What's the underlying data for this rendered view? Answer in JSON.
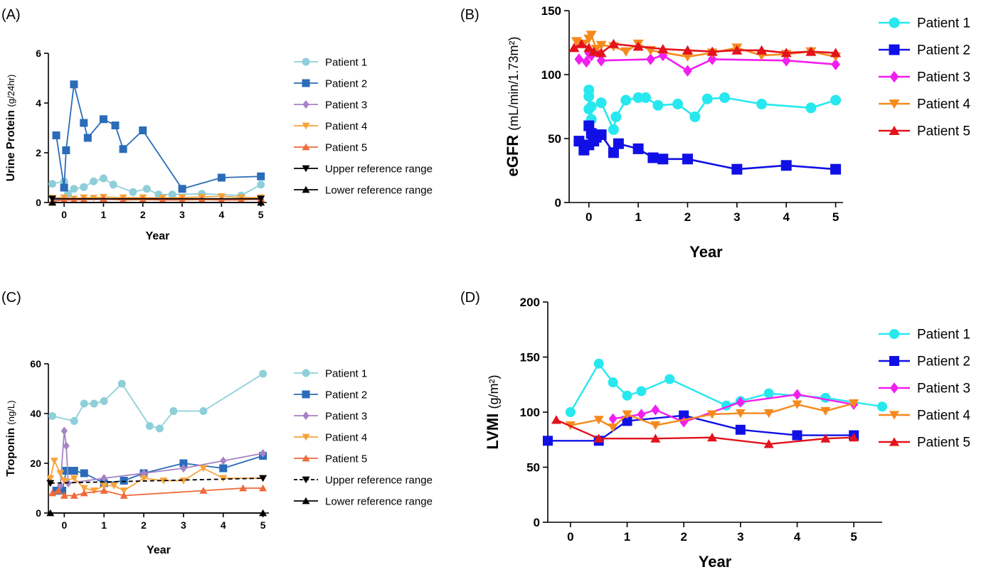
{
  "figure": {
    "panels": [
      "(A)",
      "(B)",
      "(C)",
      "(D)"
    ]
  },
  "chart_data": [
    {
      "panel": "(A)",
      "type": "line",
      "xlabel": "Year",
      "ylabel": "Urine Protein",
      "yunit": "(g/24hr)",
      "ylim": [
        0,
        6
      ],
      "yticks": [
        0,
        2,
        4,
        6
      ],
      "xlim": [
        -0.4,
        5.15
      ],
      "xticks": [
        0,
        1,
        2,
        3,
        4,
        5
      ],
      "legend": "right",
      "series": [
        {
          "name": "Patient 1",
          "marker": "circle",
          "color": "#8ecfd9",
          "x": [
            -0.3,
            0,
            0.1,
            0.25,
            0.5,
            0.75,
            1,
            1.25,
            1.75,
            2.1,
            2.4,
            2.75,
            3.5,
            4.5,
            5
          ],
          "y": [
            0.75,
            0.85,
            0.35,
            0.55,
            0.62,
            0.85,
            0.97,
            0.72,
            0.42,
            0.55,
            0.32,
            0.32,
            0.35,
            0.28,
            0.72
          ]
        },
        {
          "name": "Patient 2",
          "marker": "square",
          "color": "#2a6cb8",
          "x": [
            -0.2,
            0,
            0.05,
            0.25,
            0.5,
            0.6,
            1,
            1.3,
            1.5,
            2,
            3,
            4,
            5
          ],
          "y": [
            2.7,
            0.6,
            2.1,
            4.75,
            3.2,
            2.6,
            3.35,
            3.1,
            2.15,
            2.9,
            0.55,
            1.0,
            1.05
          ]
        },
        {
          "name": "Patient 3",
          "marker": "diamond",
          "color": "#a683c4",
          "x": [
            -0.25,
            0,
            0.5,
            1,
            1.5,
            2,
            2.5,
            3,
            3.5,
            4,
            5
          ],
          "y": [
            0.12,
            0.12,
            0.12,
            0.12,
            0.12,
            0.12,
            0.12,
            0.12,
            0.12,
            0.12,
            0.12
          ]
        },
        {
          "name": "Patient 4",
          "marker": "triangle-down",
          "color": "#f7a33a",
          "x": [
            -0.3,
            0,
            0.25,
            0.5,
            0.75,
            1,
            1.5,
            2,
            2.5,
            3,
            3.5,
            4,
            4.5,
            5
          ],
          "y": [
            0.18,
            0.2,
            0.15,
            0.2,
            0.18,
            0.22,
            0.2,
            0.2,
            0.18,
            0.2,
            0.22,
            0.25,
            0.2,
            0.2
          ]
        },
        {
          "name": "Patient 5",
          "marker": "triangle-up",
          "color": "#ef6a3a",
          "x": [
            -0.3,
            0,
            0.25,
            0.5,
            1,
            1.5,
            2,
            2.5,
            3,
            3.5,
            4,
            4.5,
            5
          ],
          "y": [
            0.05,
            0.1,
            0.1,
            0.12,
            0.15,
            0.1,
            0.12,
            0.1,
            0.1,
            0.12,
            0.1,
            0.1,
            0.15
          ]
        },
        {
          "name": "Upper reference range",
          "marker": "triangle-down",
          "color": "#000000",
          "dashed": false,
          "x": [
            -0.3,
            5
          ],
          "y": [
            0.15,
            0.15
          ]
        },
        {
          "name": "Lower reference range",
          "marker": "triangle-up",
          "color": "#000000",
          "dashed": false,
          "x": [
            -0.3,
            5
          ],
          "y": [
            0,
            0
          ]
        }
      ]
    },
    {
      "panel": "(B)",
      "type": "line",
      "xlabel": "Year",
      "ylabel": "eGFR",
      "yunit": "(mL/min/1.73m²)",
      "ylim": [
        0,
        150
      ],
      "yticks": [
        0,
        50,
        100,
        150
      ],
      "xlim": [
        -0.4,
        5.15
      ],
      "xticks": [
        0,
        1,
        2,
        3,
        4,
        5
      ],
      "legend": "right",
      "series": [
        {
          "name": "Patient 1",
          "marker": "circle",
          "color": "#27e8ef",
          "x": [
            0,
            0,
            0,
            0.05,
            0.05,
            0.25,
            0.5,
            0.55,
            0.75,
            1.0,
            1.15,
            1.4,
            1.8,
            2.15,
            2.4,
            2.75,
            3.5,
            4.5,
            5.0
          ],
          "y": [
            73,
            83,
            88,
            65,
            75,
            78,
            57,
            67,
            80,
            82,
            82,
            76,
            77,
            67,
            81,
            82,
            77,
            74,
            80
          ]
        },
        {
          "name": "Patient 2",
          "marker": "square",
          "color": "#1010e6",
          "x": [
            -0.2,
            -0.1,
            0,
            0,
            0.05,
            0.1,
            0.15,
            0.25,
            0.5,
            0.6,
            1.0,
            1.3,
            1.5,
            2.0,
            3.0,
            4.0,
            5.0
          ],
          "y": [
            48,
            41,
            45,
            60,
            54,
            48,
            51,
            53,
            39,
            46,
            42,
            35,
            34,
            34,
            26,
            29,
            26
          ]
        },
        {
          "name": "Patient 3",
          "marker": "diamond",
          "color": "#f21ef0",
          "x": [
            -0.2,
            -0.05,
            0,
            0.05,
            0.15,
            0.25,
            1.25,
            1.5,
            2.0,
            2.5,
            4.0,
            5.0
          ],
          "y": [
            112,
            110,
            117,
            115,
            118,
            111,
            112,
            115,
            103,
            112,
            111,
            108
          ]
        },
        {
          "name": "Patient 4",
          "marker": "triangle-down",
          "color": "#f58a1c",
          "x": [
            -0.25,
            -0.1,
            0,
            0.05,
            0.15,
            0.25,
            0.5,
            0.75,
            1.0,
            1.25,
            2.0,
            2.5,
            3.0,
            3.5,
            4.0,
            4.5,
            5.0
          ],
          "y": [
            126,
            124,
            128,
            131,
            120,
            123,
            122,
            118,
            124,
            119,
            114,
            117,
            121,
            115,
            116,
            118,
            114
          ]
        },
        {
          "name": "Patient 5",
          "marker": "triangle-up",
          "color": "#e3121b",
          "x": [
            -0.3,
            -0.15,
            0,
            0.1,
            0.25,
            0.5,
            1.0,
            1.5,
            2.0,
            2.5,
            3.0,
            3.5,
            4.0,
            4.5,
            5.0
          ],
          "y": [
            121,
            124,
            121,
            118,
            117,
            124,
            122,
            120,
            119,
            118,
            119,
            119,
            117,
            118,
            117
          ]
        }
      ]
    },
    {
      "panel": "(C)",
      "type": "line",
      "xlabel": "Year",
      "ylabel": "Troponin",
      "yunit": "(ng/L)",
      "ylim": [
        0,
        60
      ],
      "yticks": [
        0,
        20,
        40,
        60
      ],
      "xlim": [
        -0.4,
        5.15
      ],
      "xticks": [
        0,
        1,
        2,
        3,
        4,
        5
      ],
      "legend": "right",
      "series": [
        {
          "name": "Patient 1",
          "marker": "circle",
          "color": "#8ecfd9",
          "x": [
            -0.3,
            0.25,
            0.5,
            0.75,
            1.0,
            1.45,
            2.15,
            2.4,
            2.75,
            3.5,
            5.0
          ],
          "y": [
            39,
            37,
            44,
            44,
            45,
            52,
            35,
            34,
            41,
            41,
            56
          ]
        },
        {
          "name": "Patient 2",
          "marker": "square",
          "color": "#2a6cb8",
          "x": [
            -0.2,
            -0.05,
            0.05,
            0.15,
            0.25,
            0.5,
            1.0,
            1.5,
            2.0,
            3.0,
            4.0,
            5.0
          ],
          "y": [
            9,
            9,
            17,
            17,
            17,
            16,
            12,
            13,
            16,
            20,
            18,
            23
          ]
        },
        {
          "name": "Patient 3",
          "marker": "diamond",
          "color": "#a683c4",
          "x": [
            -0.1,
            0,
            0.05,
            0.1,
            1.0,
            2.0,
            3.0,
            4.0,
            5.0
          ],
          "y": [
            11,
            33,
            27,
            12,
            14,
            16,
            18,
            21,
            24
          ]
        },
        {
          "name": "Patient 4",
          "marker": "triangle-down",
          "color": "#f7a33a",
          "x": [
            -0.35,
            -0.25,
            -0.1,
            0,
            0.25,
            0.5,
            0.75,
            1.0,
            1.25,
            1.5,
            2.0,
            2.5,
            3.0,
            3.5,
            4.0,
            5.0
          ],
          "y": [
            14,
            21,
            16,
            13,
            14,
            10,
            9,
            11,
            11,
            9,
            14,
            13,
            13,
            18,
            14,
            14
          ]
        },
        {
          "name": "Patient 5",
          "marker": "triangle-up",
          "color": "#ef6a3a",
          "x": [
            -0.3,
            -0.15,
            0,
            0.25,
            0.5,
            1.0,
            1.5,
            3.5,
            4.5,
            5.0
          ],
          "y": [
            8,
            9,
            7,
            7,
            8,
            9,
            7,
            9,
            10,
            10
          ]
        },
        {
          "name": "Upper reference range",
          "marker": "triangle-down",
          "color": "#000000",
          "dashed": true,
          "x": [
            -0.35,
            5.0
          ],
          "y": [
            12,
            14
          ]
        },
        {
          "name": "Lower reference range",
          "marker": "triangle-up",
          "color": "#000000",
          "dashed": false,
          "x": [
            -0.35,
            5.0
          ],
          "y": [
            0,
            0
          ]
        }
      ]
    },
    {
      "panel": "(D)",
      "type": "line",
      "xlabel": "Year",
      "ylabel": "LVMI",
      "yunit": "(g/m²)",
      "ylim": [
        0,
        200
      ],
      "yticks": [
        0,
        50,
        100,
        150,
        200
      ],
      "xlim": [
        -0.4,
        5.5
      ],
      "xticks": [
        0,
        1,
        2,
        3,
        4,
        5
      ],
      "legend": "right",
      "series": [
        {
          "name": "Patient 1",
          "marker": "circle",
          "color": "#27e8ef",
          "x": [
            0,
            0.5,
            0.75,
            1.0,
            1.25,
            1.75,
            2.75,
            3.0,
            3.5,
            4.5,
            5.5
          ],
          "y": [
            100,
            144,
            127,
            115,
            119,
            130,
            106,
            110,
            117,
            113,
            105
          ]
        },
        {
          "name": "Patient 2",
          "marker": "square",
          "color": "#1010e6",
          "x": [
            -0.4,
            0.5,
            1.0,
            2.0,
            3.0,
            4.0,
            5.0
          ],
          "y": [
            74,
            74,
            92,
            97,
            84,
            79,
            79
          ]
        },
        {
          "name": "Patient 3",
          "marker": "diamond",
          "color": "#f21ef0",
          "x": [
            0.75,
            1.25,
            1.5,
            2.0,
            3.0,
            4.0,
            5.0
          ],
          "y": [
            94,
            98,
            102,
            91,
            109,
            116,
            107
          ]
        },
        {
          "name": "Patient 4",
          "marker": "triangle-down",
          "color": "#f58a1c",
          "x": [
            0,
            0.5,
            0.75,
            1.0,
            1.5,
            2.5,
            3.0,
            3.5,
            4.0,
            4.5,
            5.0
          ],
          "y": [
            88,
            93,
            86,
            98,
            88,
            98,
            99,
            99,
            107,
            101,
            108
          ]
        },
        {
          "name": "Patient 5",
          "marker": "triangle-up",
          "color": "#e3121b",
          "x": [
            -0.25,
            0.5,
            1.5,
            2.5,
            3.5,
            4.5,
            5.0
          ],
          "y": [
            93,
            76,
            76,
            77,
            71,
            76,
            77
          ]
        }
      ]
    }
  ]
}
